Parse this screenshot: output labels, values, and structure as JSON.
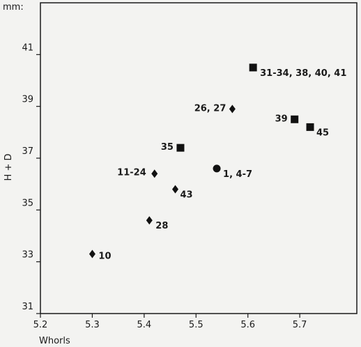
{
  "chart_data": {
    "type": "scatter",
    "title": "",
    "xlabel": "Whorls",
    "ylabel": "H + D",
    "yunit": "mm:",
    "xlim": [
      5.2,
      5.81
    ],
    "ylim": [
      31,
      43
    ],
    "grid": false,
    "xticks": [
      "5.2",
      "5.3",
      "5.4",
      "5.5",
      "5.6",
      "5.7"
    ],
    "yticks": [
      "31",
      "33",
      "35",
      "37",
      "39",
      "41"
    ],
    "points": [
      {
        "x": 5.3,
        "y": 33.3,
        "marker": "diamond",
        "label": "10"
      },
      {
        "x": 5.41,
        "y": 34.6,
        "marker": "diamond",
        "label": "28"
      },
      {
        "x": 5.42,
        "y": 36.4,
        "marker": "diamond",
        "label": "11-24"
      },
      {
        "x": 5.46,
        "y": 35.8,
        "marker": "diamond",
        "label": "43"
      },
      {
        "x": 5.47,
        "y": 37.4,
        "marker": "square",
        "label": "35"
      },
      {
        "x": 5.54,
        "y": 36.6,
        "marker": "circle",
        "label": "1, 4-7"
      },
      {
        "x": 5.57,
        "y": 38.9,
        "marker": "diamond",
        "label": "26, 27"
      },
      {
        "x": 5.61,
        "y": 40.5,
        "marker": "square",
        "label": "31-34, 38, 40, 41"
      },
      {
        "x": 5.69,
        "y": 38.5,
        "marker": "square",
        "label": "39"
      },
      {
        "x": 5.72,
        "y": 38.2,
        "marker": "square",
        "label": "45"
      }
    ]
  }
}
